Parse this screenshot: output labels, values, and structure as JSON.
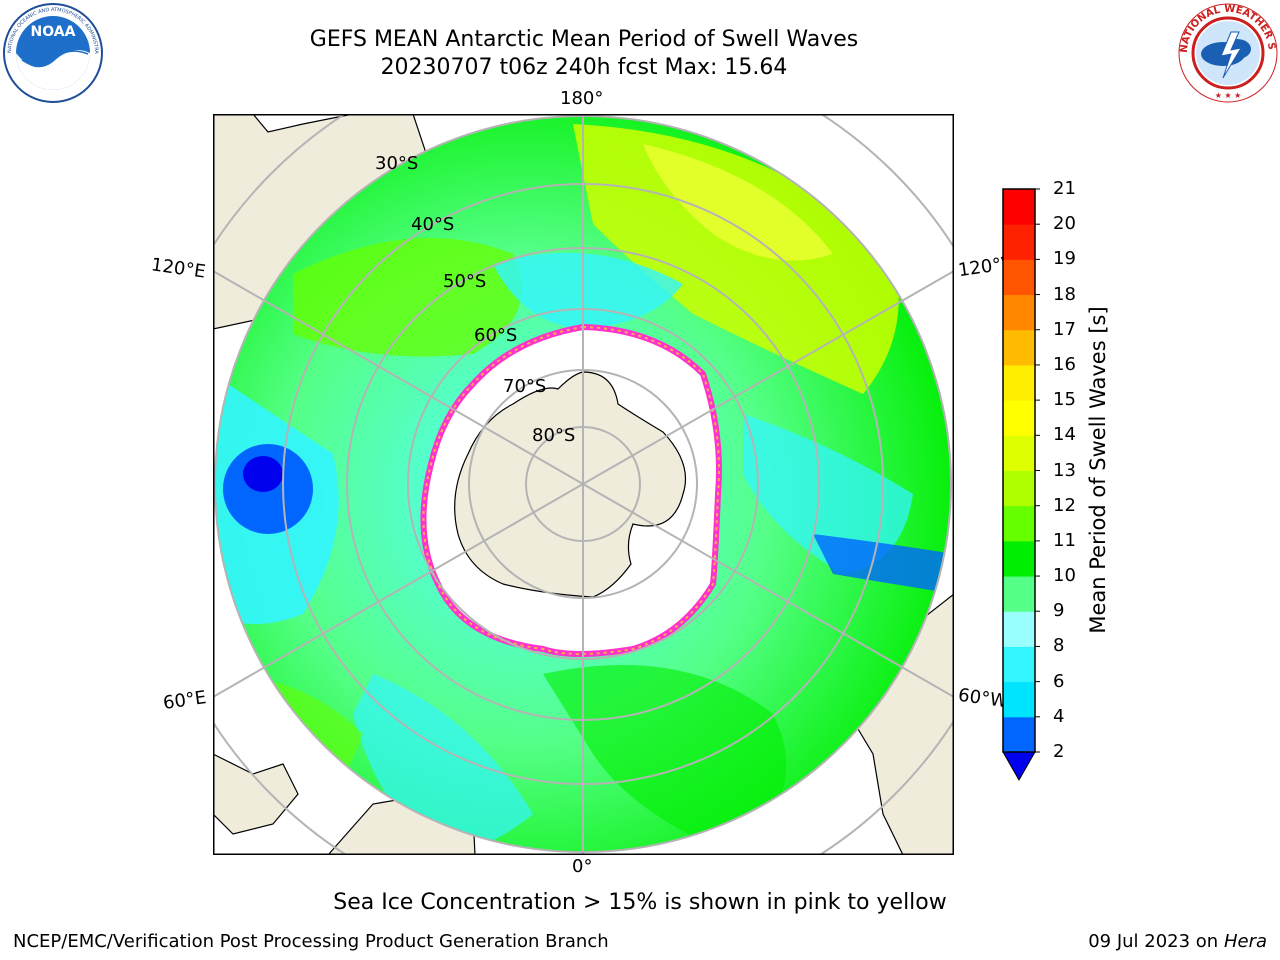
{
  "header": {
    "title": "GEFS MEAN Antarctic Mean Period of Swell Waves",
    "subtitle": "20230707 t06z 240h fcst   Max: 15.64"
  },
  "logos": {
    "left": {
      "name": "noaa-logo",
      "text": "NOAA",
      "ring_text": "NATIONAL OCEANIC AND ATMOSPHERIC ADMINISTRATION · U.S. DEPARTMENT OF COMMERCE"
    },
    "right": {
      "name": "nws-logo",
      "ring_text": "NATIONAL WEATHER SERVICE"
    }
  },
  "map": {
    "projection": "south-polar-stereographic",
    "longitude_labels": {
      "top": "180°",
      "bottom": "0°",
      "upper_left": "120°E",
      "upper_right": "120°W",
      "lower_left": "60°E",
      "lower_right": "60°W"
    },
    "latitude_labels": [
      "30°S",
      "40°S",
      "50°S",
      "60°S",
      "70°S",
      "80°S"
    ],
    "colors": {
      "land": "#efecdc",
      "ice_shelf": "#ffffff",
      "graticule": "#b4b4b4",
      "coast": "#000000",
      "sea_ice_edge": [
        "#ff33cc",
        "#ffb050"
      ]
    }
  },
  "colorbar": {
    "label": "Mean Period of Swell Waves [s]",
    "ticks": [
      "2",
      "4",
      "6",
      "8",
      "9",
      "10",
      "11",
      "12",
      "13",
      "14",
      "15",
      "16",
      "17",
      "18",
      "19",
      "20",
      "21"
    ],
    "colors": [
      "#0066ff",
      "#00e5ff",
      "#33f5ff",
      "#99ffff",
      "#55ff88",
      "#00ee00",
      "#66ff00",
      "#b0ff00",
      "#ddff00",
      "#ffff00",
      "#ffee00",
      "#ffbb00",
      "#ff8800",
      "#ff5500",
      "#ff2200",
      "#ff0000"
    ],
    "underflow_color": "#0000ee"
  },
  "note": "Sea Ice Concentration > 15% is shown in pink to yellow",
  "footer": {
    "left": "NCEP/EMC/Verification Post Processing Product Generation Branch",
    "date": "09 Jul 2023 on ",
    "machine": "Hera"
  }
}
